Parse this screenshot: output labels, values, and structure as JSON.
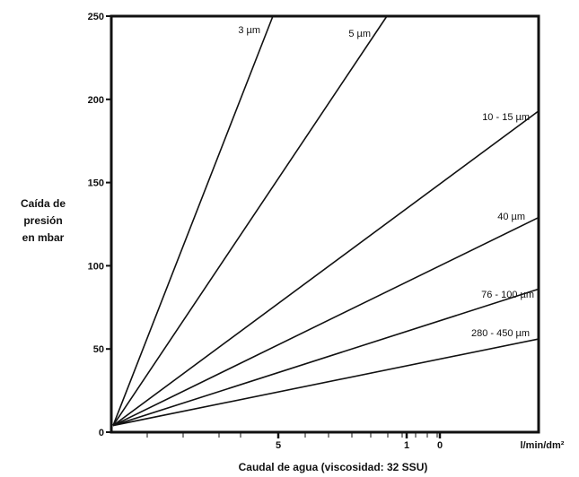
{
  "chart_data": {
    "type": "line",
    "ylabel_lines": [
      "Caída de",
      "presión",
      "en mbar"
    ],
    "xlabel": "Caudal de agua (viscosidad: 32 SSU)",
    "x_unit_label": "l/min/dm²",
    "ylim": [
      0,
      250
    ],
    "y_ticks": [
      0,
      50,
      100,
      150,
      200,
      250
    ],
    "x_tick_labels": [
      "5",
      "1",
      "0"
    ],
    "grid": false,
    "series": [
      {
        "name": "3 µm",
        "start_y": 4,
        "end_y": 250
      },
      {
        "name": "5 µm",
        "start_y": 4,
        "end_y": 250
      },
      {
        "name": "10 - 15 µm",
        "start_y": 4,
        "end_y": 193
      },
      {
        "name": "40 µm",
        "start_y": 4,
        "end_y": 129
      },
      {
        "name": "76 - 100 µm",
        "start_y": 4,
        "end_y": 86
      },
      {
        "name": "280 - 450 µm",
        "start_y": 4,
        "end_y": 56
      }
    ]
  }
}
